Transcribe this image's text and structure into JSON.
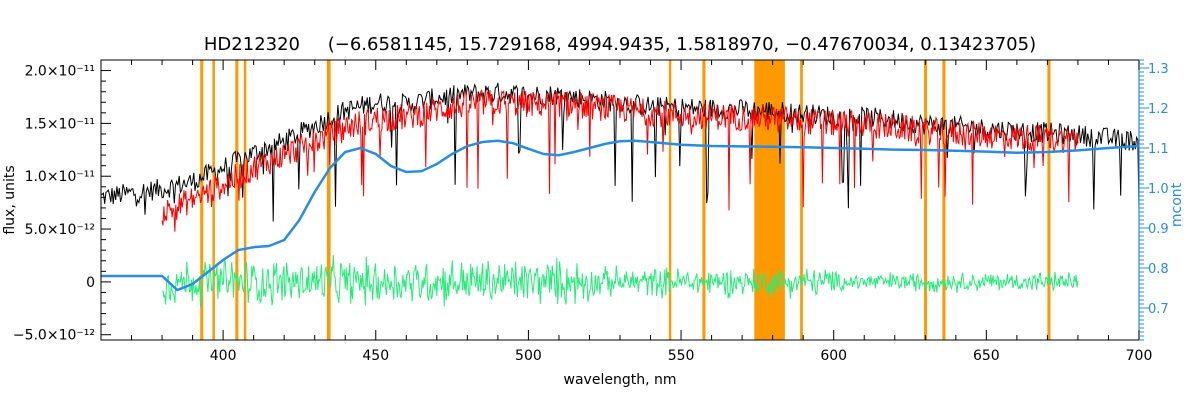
{
  "chart_data": {
    "type": "line",
    "title": "HD212320",
    "subtitle": "(−6.6581145, 15.729168, 4994.9435, 1.5818970, −0.47670034, 0.13423705)",
    "xlabel": "wavelength, nm",
    "ylabel": "flux, units",
    "y2label": "mcont",
    "xlim": [
      360,
      700
    ],
    "ylim": [
      -5.5e-12,
      2.1e-11
    ],
    "y2lim": [
      0.62,
      1.32
    ],
    "x_ticks": [
      400,
      450,
      500,
      550,
      600,
      650,
      700
    ],
    "y_ticks": [
      {
        "value": 2e-11,
        "label": "2.0×10⁻¹¹"
      },
      {
        "value": 1.5e-11,
        "label": "1.5×10⁻¹¹"
      },
      {
        "value": 1e-11,
        "label": "1.0×10⁻¹¹"
      },
      {
        "value": 5e-12,
        "label": "5.0×10⁻¹²"
      },
      {
        "value": 0,
        "label": "0"
      },
      {
        "value": -5e-12,
        "label": "−5.0×10⁻¹²"
      }
    ],
    "y2_ticks": [
      0.7,
      0.8,
      0.9,
      1.0,
      1.1,
      1.2,
      1.3
    ],
    "grid": false,
    "masked_regions": [
      [
        392.5,
        393.5
      ],
      [
        396.5,
        397.3
      ],
      [
        404.0,
        405.0
      ],
      [
        406.8,
        407.6
      ],
      [
        434.0,
        435.2
      ],
      [
        546.0,
        546.8
      ],
      [
        557.0,
        558.0
      ],
      [
        574.0,
        584.0
      ],
      [
        589.0,
        589.9
      ],
      [
        629.6,
        630.6
      ],
      [
        635.6,
        636.6
      ],
      [
        670.0,
        671.0
      ]
    ],
    "series": [
      {
        "role": "observed",
        "color": "#000000",
        "x": [
          360,
          380,
          390,
          400,
          410,
          420,
          430,
          440,
          450,
          460,
          470,
          480,
          490,
          500,
          510,
          520,
          530,
          540,
          550,
          560,
          570,
          580,
          590,
          600,
          610,
          620,
          630,
          640,
          650,
          660,
          670,
          680,
          690,
          700
        ],
        "y": [
          8e-12,
          8.8e-12,
          9.5e-12,
          1.08e-11,
          1.22e-11,
          1.33e-11,
          1.48e-11,
          1.62e-11,
          1.7e-11,
          1.68e-11,
          1.74e-11,
          1.78e-11,
          1.79e-11,
          1.77e-11,
          1.77e-11,
          1.73e-11,
          1.7e-11,
          1.66e-11,
          1.65e-11,
          1.64e-11,
          1.63e-11,
          1.62e-11,
          1.59e-11,
          1.57e-11,
          1.56e-11,
          1.53e-11,
          1.49e-11,
          1.47e-11,
          1.45e-11,
          1.43e-11,
          1.41e-11,
          1.39e-11,
          1.36e-11,
          1.33e-11
        ]
      },
      {
        "role": "model",
        "color": "#ff0000",
        "x": [
          380,
          390,
          400,
          410,
          420,
          430,
          440,
          450,
          460,
          470,
          480,
          490,
          500,
          510,
          520,
          530,
          540,
          550,
          560,
          570,
          580,
          590,
          600,
          610,
          620,
          630,
          640,
          650,
          660,
          670,
          680
        ],
        "y": [
          6.5e-12,
          7.8e-12,
          9.2e-12,
          1.08e-11,
          1.2e-11,
          1.33e-11,
          1.46e-11,
          1.54e-11,
          1.56e-11,
          1.63e-11,
          1.68e-11,
          1.7e-11,
          1.68e-11,
          1.69e-11,
          1.66e-11,
          1.64e-11,
          1.6e-11,
          1.58e-11,
          1.57e-11,
          1.56e-11,
          1.55e-11,
          1.52e-11,
          1.5e-11,
          1.49e-11,
          1.46e-11,
          1.43e-11,
          1.41e-11,
          1.39e-11,
          1.37e-11,
          1.36e-11,
          1.34e-11
        ]
      },
      {
        "role": "residual",
        "color": "#22ee77",
        "x": [
          380,
          400,
          420,
          440,
          460,
          480,
          500,
          520,
          540,
          560,
          580,
          600,
          620,
          640,
          660,
          680
        ],
        "y": [
          0,
          0,
          0,
          0,
          0,
          0,
          0,
          0,
          0,
          0,
          0,
          0,
          0,
          0,
          0,
          0
        ]
      },
      {
        "role": "continuum",
        "axis": "right",
        "color": "#2a8ce0",
        "x": [
          360,
          380,
          385,
          390,
          395,
          400,
          405,
          410,
          415,
          420,
          425,
          430,
          435,
          440,
          445,
          450,
          455,
          460,
          465,
          470,
          475,
          480,
          485,
          490,
          495,
          500,
          505,
          510,
          515,
          520,
          525,
          530,
          535,
          540,
          550,
          560,
          570,
          580,
          590,
          600,
          610,
          620,
          630,
          640,
          650,
          660,
          670,
          680,
          690,
          700
        ],
        "y": [
          0.78,
          0.78,
          0.745,
          0.76,
          0.79,
          0.82,
          0.845,
          0.852,
          0.855,
          0.87,
          0.92,
          0.99,
          1.05,
          1.09,
          1.1,
          1.085,
          1.055,
          1.04,
          1.042,
          1.06,
          1.085,
          1.105,
          1.115,
          1.118,
          1.112,
          1.098,
          1.085,
          1.082,
          1.09,
          1.1,
          1.11,
          1.117,
          1.118,
          1.115,
          1.108,
          1.105,
          1.104,
          1.103,
          1.102,
          1.1,
          1.098,
          1.096,
          1.095,
          1.093,
          1.091,
          1.088,
          1.09,
          1.094,
          1.1,
          1.105
        ]
      }
    ]
  }
}
